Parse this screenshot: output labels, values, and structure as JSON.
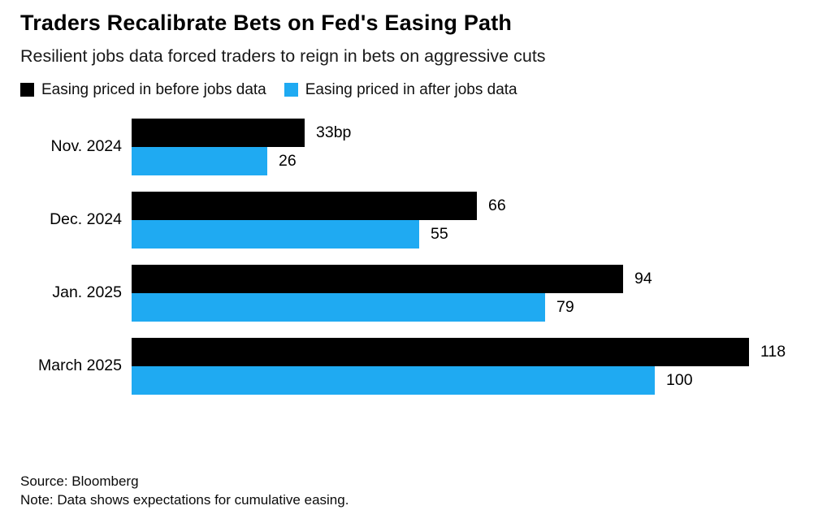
{
  "header": {
    "title": "Traders Recalibrate Bets on Fed's Easing Path",
    "subtitle": "Resilient jobs data forced traders to reign in bets on aggressive cuts"
  },
  "legend": {
    "items": [
      {
        "label": "Easing priced in before jobs data",
        "color": "#000000"
      },
      {
        "label": "Easing priced in after jobs data",
        "color": "#1faaf2"
      }
    ]
  },
  "chart_data": {
    "type": "bar",
    "orientation": "horizontal",
    "title": "Traders Recalibrate Bets on Fed's Easing Path",
    "subtitle": "Resilient jobs data forced traders to reign in bets on aggressive cuts",
    "categories": [
      "Nov. 2024",
      "Dec. 2024",
      "Jan. 2025",
      "March 2025"
    ],
    "series": [
      {
        "name": "Easing priced in before jobs data",
        "color": "#000000",
        "values": [
          33,
          66,
          94,
          118
        ],
        "value_labels": [
          "33bp",
          "66",
          "94",
          "118"
        ]
      },
      {
        "name": "Easing priced in after jobs data",
        "color": "#1faaf2",
        "values": [
          26,
          55,
          79,
          100
        ],
        "value_labels": [
          "26",
          "55",
          "79",
          "100"
        ]
      }
    ],
    "unit": "bp",
    "xlim": [
      0,
      118
    ],
    "grid": false,
    "legend_position": "top",
    "value_labels_shown": true
  },
  "footer": {
    "source": "Source: Bloomberg",
    "note": "Note: Data shows expectations for cumulative easing."
  }
}
